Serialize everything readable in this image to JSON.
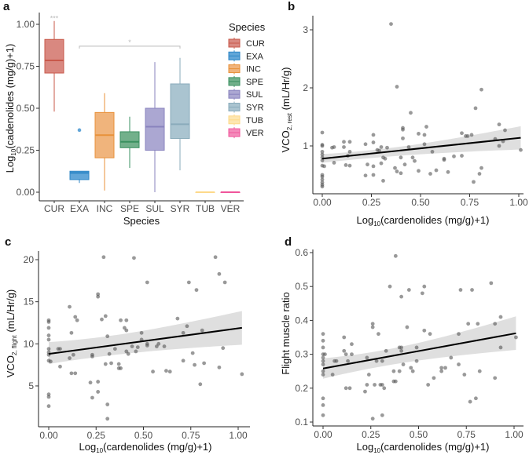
{
  "chart_data": [
    {
      "panel": "a",
      "type": "box",
      "xlabel": "Species",
      "ylabel": {
        "main": "Log",
        "sub": "10",
        "rest": "(cadenolides (mg/g)+1)"
      },
      "ylim": [
        0,
        1.05
      ],
      "yticks": [
        "0.00",
        "0.25",
        "0.50",
        "0.75",
        "1.00"
      ],
      "ytick_values": [
        0,
        0.25,
        0.5,
        0.75,
        1.0
      ],
      "legend": {
        "title": "Species",
        "position": "right"
      },
      "groups": [
        {
          "name": "CUR",
          "low": 0.48,
          "q1": 0.71,
          "median": 0.785,
          "q3": 0.91,
          "high": 1.02,
          "outliers": [],
          "color": "#c8584a",
          "fill": "#d98880"
        },
        {
          "name": "EXA",
          "low": 0.055,
          "q1": 0.075,
          "median": 0.115,
          "q3": 0.125,
          "high": 0.125,
          "outliers": [
            0.37
          ],
          "color": "#2c86c6",
          "fill": "#62a6d8"
        },
        {
          "name": "INC",
          "low": 0.01,
          "q1": 0.205,
          "median": 0.34,
          "q3": 0.475,
          "high": 0.59,
          "outliers": [],
          "color": "#e8913a",
          "fill": "#f0b47c"
        },
        {
          "name": "SPE",
          "low": 0.145,
          "q1": 0.265,
          "median": 0.3,
          "q3": 0.36,
          "high": 0.45,
          "outliers": [],
          "color": "#3a9060",
          "fill": "#72b08b"
        },
        {
          "name": "SUL",
          "low": 0.0,
          "q1": 0.25,
          "median": 0.39,
          "q3": 0.5,
          "high": 0.775,
          "outliers": [],
          "color": "#8983be",
          "fill": "#aba7d2"
        },
        {
          "name": "SYR",
          "low": 0.13,
          "q1": 0.32,
          "median": 0.405,
          "q3": 0.645,
          "high": 0.8,
          "outliers": [],
          "color": "#8aabbb",
          "fill": "#aac4d0"
        },
        {
          "name": "TUB",
          "low": 0,
          "q1": 0,
          "median": 0,
          "q3": 0,
          "high": 0,
          "outliers": [],
          "color": "#fdd98a",
          "fill": "#fde6b0"
        },
        {
          "name": "VER",
          "low": 0,
          "q1": 0,
          "median": 0,
          "q3": 0,
          "high": 0,
          "outliers": [],
          "color": "#f0559b",
          "fill": "#f48cbb"
        }
      ],
      "annotations": [
        {
          "text": "***",
          "group": "CUR",
          "y": 1.04
        },
        {
          "text": "*",
          "from": "EXA",
          "to": "SYR",
          "y": 0.87
        }
      ]
    },
    {
      "panel": "b",
      "type": "scatter",
      "xlabel": {
        "main": "Log",
        "sub": "10",
        "rest": "(cardenolides (mg/g)+1)"
      },
      "ylabel": {
        "main": "VCO",
        "sub": "2, rest",
        "rest": " (mL/Hr/g)"
      },
      "xticks": [
        "0.00",
        "0.25",
        "0.50",
        "0.75",
        "1.00"
      ],
      "xtick_values": [
        0,
        0.25,
        0.5,
        0.75,
        1.0
      ],
      "yticks": [
        "1",
        "2",
        "3"
      ],
      "ytick_values": [
        1,
        2,
        3
      ],
      "fit": {
        "x": [
          0,
          1.01
        ],
        "y": [
          0.78,
          1.14
        ],
        "ci_low": [
          0.71,
          0.94
        ],
        "ci_high": [
          0.86,
          1.34
        ]
      },
      "points": [
        [
          0,
          1.23
        ],
        [
          0,
          1.02
        ],
        [
          0,
          1.0
        ],
        [
          0,
          0.9
        ],
        [
          0,
          0.85
        ],
        [
          0,
          0.8
        ],
        [
          0,
          0.75
        ],
        [
          0,
          0.66
        ],
        [
          0,
          0.5
        ],
        [
          0,
          0.47
        ],
        [
          0,
          0.42
        ],
        [
          0,
          0.37
        ],
        [
          0,
          0.33
        ],
        [
          0,
          0.3
        ],
        [
          0.01,
          0.65
        ],
        [
          0.05,
          0.97
        ],
        [
          0.06,
          0.98
        ],
        [
          0.06,
          0.71
        ],
        [
          0.11,
          1.07
        ],
        [
          0.11,
          0.98
        ],
        [
          0.12,
          0.67
        ],
        [
          0.13,
          0.83
        ],
        [
          0.14,
          1.07
        ],
        [
          0.14,
          0.9
        ],
        [
          0.14,
          0.66
        ],
        [
          0.22,
          1.03
        ],
        [
          0.22,
          0.49
        ],
        [
          0.23,
          0.68
        ],
        [
          0.26,
          1.19
        ],
        [
          0.26,
          1.06
        ],
        [
          0.26,
          0.65
        ],
        [
          0.26,
          0.5
        ],
        [
          0.28,
          0.93
        ],
        [
          0.29,
          0.92
        ],
        [
          0.3,
          0.98
        ],
        [
          0.3,
          0.7
        ],
        [
          0.31,
          0.8
        ],
        [
          0.31,
          0.4
        ],
        [
          0.32,
          0.78
        ],
        [
          0.33,
          0.97
        ],
        [
          0.35,
          3.1
        ],
        [
          0.37,
          0.62
        ],
        [
          0.38,
          2.02
        ],
        [
          0.38,
          0.56
        ],
        [
          0.4,
          0.8
        ],
        [
          0.4,
          0.53
        ],
        [
          0.41,
          1.31
        ],
        [
          0.41,
          1.28
        ],
        [
          0.41,
          1.13
        ],
        [
          0.42,
          0.68
        ],
        [
          0.44,
          0.98
        ],
        [
          0.45,
          1.57
        ],
        [
          0.46,
          0.8
        ],
        [
          0.47,
          0.74
        ],
        [
          0.49,
          1.21
        ],
        [
          0.49,
          0.57
        ],
        [
          0.52,
          1.19
        ],
        [
          0.52,
          1.03
        ],
        [
          0.53,
          1.33
        ],
        [
          0.55,
          0.52
        ],
        [
          0.56,
          0.9
        ],
        [
          0.58,
          0.58
        ],
        [
          0.62,
          0.76
        ],
        [
          0.62,
          0.78
        ],
        [
          0.64,
          0.55
        ],
        [
          0.67,
          0.82
        ],
        [
          0.71,
          1.22
        ],
        [
          0.71,
          0.83
        ],
        [
          0.73,
          1.17
        ],
        [
          0.74,
          1.17
        ],
        [
          0.76,
          1.19
        ],
        [
          0.77,
          0.38
        ],
        [
          0.78,
          1.65
        ],
        [
          0.8,
          0.52
        ],
        [
          0.81,
          1.97
        ],
        [
          0.81,
          0.62
        ],
        [
          0.88,
          1.12
        ],
        [
          0.9,
          1.37
        ],
        [
          0.9,
          1.0
        ],
        [
          0.93,
          1.27
        ],
        [
          0.92,
          1.08
        ],
        [
          1.01,
          0.93
        ]
      ]
    },
    {
      "panel": "c",
      "type": "scatter",
      "xlabel": {
        "main": "Log",
        "sub": "10",
        "rest": "(cardenolides (mg/g)+1)"
      },
      "ylabel": {
        "main": "VCO",
        "sub": "2, flight",
        "rest": " (mL/Hr/g)"
      },
      "xticks": [
        "0.00",
        "0.25",
        "0.50",
        "0.75",
        "1.00"
      ],
      "xtick_values": [
        0,
        0.25,
        0.5,
        0.75,
        1.0
      ],
      "yticks": [
        "5",
        "10",
        "15",
        "20"
      ],
      "ytick_values": [
        5,
        10,
        15,
        20
      ],
      "fit": {
        "x": [
          0,
          1.02
        ],
        "y": [
          8.8,
          11.9
        ],
        "ci_low": [
          7.6,
          9.9
        ],
        "ci_high": [
          10.2,
          13.9
        ]
      },
      "points": [
        [
          0,
          12.8
        ],
        [
          0,
          12.6
        ],
        [
          0,
          11.9
        ],
        [
          0,
          11
        ],
        [
          0,
          10.5
        ],
        [
          0,
          9.4
        ],
        [
          0,
          9
        ],
        [
          0,
          8.7
        ],
        [
          0,
          8
        ],
        [
          0,
          4
        ],
        [
          0,
          3.7
        ],
        [
          0,
          2.6
        ],
        [
          0.01,
          7.9
        ],
        [
          0.05,
          9.4
        ],
        [
          0.06,
          9.4
        ],
        [
          0.06,
          7.3
        ],
        [
          0.11,
          14.4
        ],
        [
          0.11,
          8.3
        ],
        [
          0.12,
          11.3
        ],
        [
          0.12,
          6.5
        ],
        [
          0.13,
          8.7
        ],
        [
          0.14,
          13.2
        ],
        [
          0.15,
          12.8
        ],
        [
          0.14,
          6.5
        ],
        [
          0.22,
          5.4
        ],
        [
          0.23,
          3.6
        ],
        [
          0.23,
          8.7
        ],
        [
          0.23,
          8.5
        ],
        [
          0.26,
          15.9
        ],
        [
          0.26,
          15.6
        ],
        [
          0.26,
          5.5
        ],
        [
          0.26,
          4.3
        ],
        [
          0.28,
          12.9
        ],
        [
          0.29,
          20.3
        ],
        [
          0.3,
          13.3
        ],
        [
          0.3,
          7.6
        ],
        [
          0.31,
          10.9
        ],
        [
          0.31,
          2.8
        ],
        [
          0.31,
          1.1
        ],
        [
          0.32,
          8.8
        ],
        [
          0.33,
          7.7
        ],
        [
          0.35,
          9.4
        ],
        [
          0.37,
          7.6
        ],
        [
          0.37,
          7.1
        ],
        [
          0.38,
          12.8
        ],
        [
          0.38,
          7.1
        ],
        [
          0.4,
          11.9
        ],
        [
          0.41,
          12.8
        ],
        [
          0.41,
          11.6
        ],
        [
          0.41,
          9.1
        ],
        [
          0.42,
          8.8
        ],
        [
          0.44,
          9.7
        ],
        [
          0.45,
          20.2
        ],
        [
          0.46,
          9.1
        ],
        [
          0.47,
          9.6
        ],
        [
          0.49,
          11.3
        ],
        [
          0.49,
          10.5
        ],
        [
          0.52,
          17.3
        ],
        [
          0.52,
          10.0
        ],
        [
          0.52,
          9.8
        ],
        [
          0.55,
          6.7
        ],
        [
          0.57,
          9.7
        ],
        [
          0.58,
          10.0
        ],
        [
          0.61,
          9.7
        ],
        [
          0.62,
          6.8
        ],
        [
          0.64,
          6.7
        ],
        [
          0.68,
          13.0
        ],
        [
          0.71,
          11.3
        ],
        [
          0.71,
          8.0
        ],
        [
          0.73,
          12.1
        ],
        [
          0.74,
          17.3
        ],
        [
          0.76,
          8.9
        ],
        [
          0.77,
          7.5
        ],
        [
          0.78,
          16.4
        ],
        [
          0.8,
          5.2
        ],
        [
          0.81,
          11.6
        ],
        [
          0.82,
          7.7
        ],
        [
          0.88,
          20.3
        ],
        [
          0.9,
          18.3
        ],
        [
          0.9,
          7.2
        ],
        [
          0.92,
          9.5
        ],
        [
          0.93,
          17.3
        ],
        [
          1.02,
          6.4
        ]
      ]
    },
    {
      "panel": "d",
      "type": "scatter",
      "xlabel": {
        "main": "Log",
        "sub": "10",
        "rest": "(cardenolides (mg/g)+1)"
      },
      "ylabel": {
        "main": "Flight muscle ratio",
        "sub": "",
        "rest": ""
      },
      "xticks": [
        "0.00",
        "0.25",
        "0.50",
        "0.75",
        "1.00"
      ],
      "xtick_values": [
        0,
        0.25,
        0.5,
        0.75,
        1.0
      ],
      "yticks": [
        "0.1",
        "0.2",
        "0.3",
        "0.4",
        "0.5",
        "0.6"
      ],
      "ytick_values": [
        0.1,
        0.2,
        0.3,
        0.4,
        0.5,
        0.6
      ],
      "fit": {
        "x": [
          0,
          1.01
        ],
        "y": [
          0.258,
          0.362
        ],
        "ci_low": [
          0.228,
          0.313
        ],
        "ci_high": [
          0.288,
          0.412
        ]
      },
      "points": [
        [
          0,
          0.36
        ],
        [
          0,
          0.34
        ],
        [
          0,
          0.32
        ],
        [
          0,
          0.3
        ],
        [
          0,
          0.29
        ],
        [
          0,
          0.28
        ],
        [
          0,
          0.27
        ],
        [
          0,
          0.25
        ],
        [
          0,
          0.24
        ],
        [
          0,
          0.17
        ],
        [
          0,
          0.15
        ],
        [
          0,
          0.12
        ],
        [
          0.01,
          0.3
        ],
        [
          0.05,
          0.24
        ],
        [
          0.06,
          0.28
        ],
        [
          0.07,
          0.28
        ],
        [
          0.11,
          0.35
        ],
        [
          0.11,
          0.31
        ],
        [
          0.12,
          0.3
        ],
        [
          0.12,
          0.2
        ],
        [
          0.13,
          0.28
        ],
        [
          0.14,
          0.2
        ],
        [
          0.15,
          0.33
        ],
        [
          0.15,
          0.3
        ],
        [
          0.22,
          0.19
        ],
        [
          0.23,
          0.29
        ],
        [
          0.23,
          0.21
        ],
        [
          0.24,
          0.24
        ],
        [
          0.26,
          0.39
        ],
        [
          0.26,
          0.38
        ],
        [
          0.27,
          0.21
        ],
        [
          0.26,
          0.11
        ],
        [
          0.28,
          0.28
        ],
        [
          0.29,
          0.36
        ],
        [
          0.3,
          0.21
        ],
        [
          0.31,
          0.21
        ],
        [
          0.31,
          0.28
        ],
        [
          0.31,
          0.12
        ],
        [
          0.32,
          0.2
        ],
        [
          0.33,
          0.31
        ],
        [
          0.35,
          0.5
        ],
        [
          0.37,
          0.25
        ],
        [
          0.37,
          0.22
        ],
        [
          0.38,
          0.59
        ],
        [
          0.38,
          0.22
        ],
        [
          0.4,
          0.32
        ],
        [
          0.4,
          0.25
        ],
        [
          0.41,
          0.47
        ],
        [
          0.41,
          0.32
        ],
        [
          0.41,
          0.31
        ],
        [
          0.42,
          0.27
        ],
        [
          0.44,
          0.38
        ],
        [
          0.45,
          0.49
        ],
        [
          0.46,
          0.26
        ],
        [
          0.47,
          0.25
        ],
        [
          0.49,
          0.32
        ],
        [
          0.49,
          0.28
        ],
        [
          0.52,
          0.48
        ],
        [
          0.53,
          0.5
        ],
        [
          0.53,
          0.37
        ],
        [
          0.55,
          0.21
        ],
        [
          0.56,
          0.36
        ],
        [
          0.58,
          0.23
        ],
        [
          0.62,
          0.26
        ],
        [
          0.62,
          0.25
        ],
        [
          0.64,
          0.26
        ],
        [
          0.67,
          0.29
        ],
        [
          0.71,
          0.36
        ],
        [
          0.71,
          0.27
        ],
        [
          0.72,
          0.49
        ],
        [
          0.74,
          0.24
        ],
        [
          0.76,
          0.39
        ],
        [
          0.77,
          0.16
        ],
        [
          0.78,
          0.49
        ],
        [
          0.8,
          0.17
        ],
        [
          0.81,
          0.39
        ],
        [
          0.82,
          0.25
        ],
        [
          0.88,
          0.51
        ],
        [
          0.9,
          0.39
        ],
        [
          0.9,
          0.23
        ],
        [
          0.93,
          0.41
        ],
        [
          0.93,
          0.32
        ],
        [
          1.01,
          0.35
        ]
      ]
    }
  ]
}
